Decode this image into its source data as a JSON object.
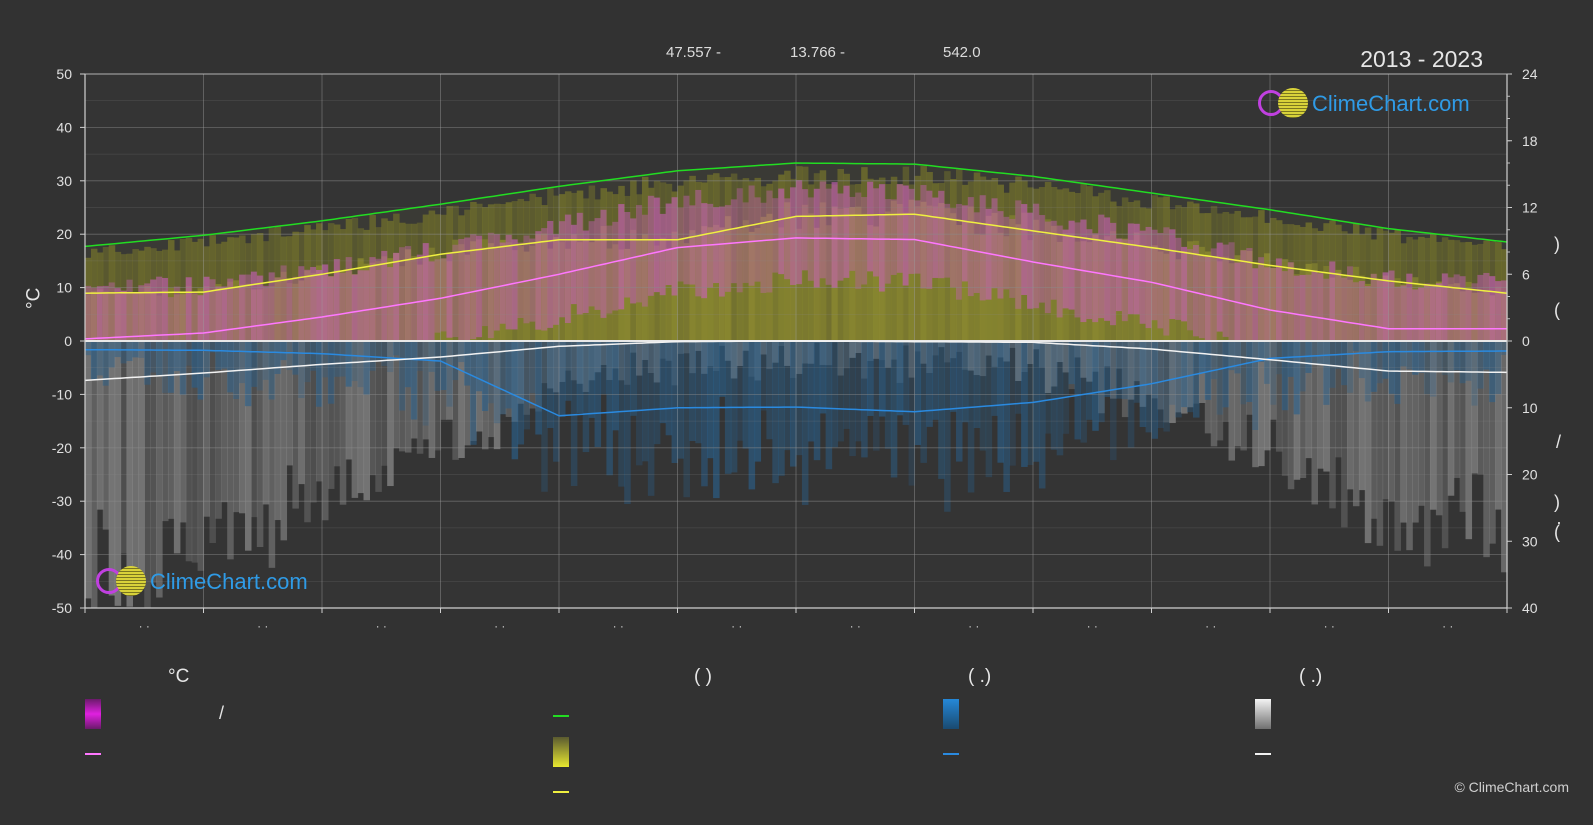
{
  "header": {
    "latitude_text": "47.557 -",
    "longitude_text": "13.766 -",
    "elevation_text": "542.0",
    "years": "2013 - 2023"
  },
  "brand": {
    "logo_text": "ClimeChart.com",
    "copyright": "© ClimeChart.com"
  },
  "axes": {
    "left_unit": "°C",
    "right_side_marks": [
      ")",
      "(",
      "/",
      ")",
      "·",
      "("
    ]
  },
  "legend": {
    "col1_head": "°C",
    "col2_head": "(        )",
    "col3_head": "(   .)",
    "col4_head": "(   .)",
    "col1_item1_text": "/",
    "colors": {
      "temp_range": "#e020e0",
      "temp_mean": "#ff77ff",
      "daylight": "#44dd22",
      "sunshine": "#e8e830",
      "rain": "#2588d8",
      "snow": "#e8e8e8"
    }
  },
  "chart_data": {
    "type": "area",
    "x_months": 12,
    "x_tick_labels": [
      "· ·",
      "· ·",
      "· ·",
      "· ·",
      "· ·",
      "· ·",
      "· ·",
      "· ·",
      "· ·",
      "· ·",
      "· ·",
      "· ·"
    ],
    "left_axis": {
      "label": "°C",
      "range": [
        -50,
        50
      ],
      "ticks": [
        50,
        40,
        30,
        20,
        10,
        0,
        -10,
        -20,
        -30,
        -40,
        -50
      ]
    },
    "right_axis_top": {
      "range": [
        0,
        24
      ],
      "ticks": [
        24,
        18,
        12,
        6,
        0
      ],
      "note": "hours"
    },
    "right_axis_bottom": {
      "range": [
        0,
        40
      ],
      "ticks": [
        0,
        10,
        20,
        30,
        40
      ],
      "note": "precipitation"
    },
    "series": [
      {
        "key": "daylight_hours",
        "color": "#22dd22",
        "axis": "hours",
        "points": [
          [
            0,
            8.5
          ],
          [
            1,
            9.5
          ],
          [
            2,
            10.8
          ],
          [
            3,
            12.3
          ],
          [
            4,
            13.9
          ],
          [
            5,
            15.3
          ],
          [
            6,
            16.0
          ],
          [
            7,
            15.9
          ],
          [
            8,
            14.8
          ],
          [
            9,
            13.3
          ],
          [
            10,
            11.8
          ],
          [
            11,
            10.1
          ],
          [
            12,
            8.9
          ],
          [
            13,
            8.4
          ],
          [
            14,
            8.5
          ]
        ]
      },
      {
        "key": "sunshine_hours",
        "color": "#f0f040",
        "axis": "hours",
        "points": [
          [
            0,
            4.3
          ],
          [
            1,
            4.4
          ],
          [
            2,
            6.0
          ],
          [
            3,
            7.8
          ],
          [
            4,
            9.1
          ],
          [
            5,
            9.1
          ],
          [
            6,
            11.2
          ],
          [
            7,
            11.4
          ],
          [
            8,
            9.9
          ],
          [
            9,
            8.4
          ],
          [
            10,
            6.8
          ],
          [
            11,
            5.4
          ],
          [
            12,
            4.3
          ],
          [
            13,
            4.3
          ],
          [
            14,
            4.3
          ]
        ]
      },
      {
        "key": "mean_temperature",
        "color": "#ff77ff",
        "axis": "celsius",
        "points": [
          [
            0,
            0.4
          ],
          [
            1,
            1.5
          ],
          [
            2,
            4.5
          ],
          [
            3,
            8.0
          ],
          [
            4,
            12.5
          ],
          [
            5,
            17.5
          ],
          [
            6,
            19.3
          ],
          [
            7,
            19.0
          ],
          [
            8,
            14.8
          ],
          [
            9,
            11.0
          ],
          [
            10,
            5.8
          ],
          [
            11,
            2.3
          ],
          [
            12,
            2.3
          ],
          [
            13,
            2.3
          ],
          [
            14,
            2.3
          ]
        ]
      },
      {
        "key": "rain_mean",
        "color": "#2a8ae0",
        "axis": "precip",
        "points": [
          [
            0,
            1.3
          ],
          [
            1,
            1.4
          ],
          [
            2,
            1.9
          ],
          [
            3,
            3.0
          ],
          [
            4,
            11.2
          ],
          [
            5,
            10.0
          ],
          [
            6,
            9.9
          ],
          [
            7,
            10.6
          ],
          [
            8,
            9.2
          ],
          [
            9,
            6.4
          ],
          [
            10,
            2.6
          ],
          [
            11,
            1.6
          ],
          [
            12,
            1.5
          ],
          [
            13,
            1.5
          ],
          [
            14,
            1.5
          ]
        ]
      },
      {
        "key": "snow_mean",
        "color": "#f2f2f2",
        "axis": "precip",
        "points": [
          [
            0,
            5.9
          ],
          [
            1,
            4.8
          ],
          [
            2,
            3.5
          ],
          [
            3,
            2.4
          ],
          [
            4,
            0.8
          ],
          [
            5,
            0.1
          ],
          [
            6,
            0.0
          ],
          [
            7,
            0.1
          ],
          [
            8,
            0.2
          ],
          [
            9,
            1.2
          ],
          [
            10,
            2.8
          ],
          [
            11,
            4.5
          ],
          [
            12,
            4.7
          ],
          [
            13,
            4.7
          ],
          [
            14,
            4.7
          ]
        ]
      }
    ],
    "grid": true
  }
}
